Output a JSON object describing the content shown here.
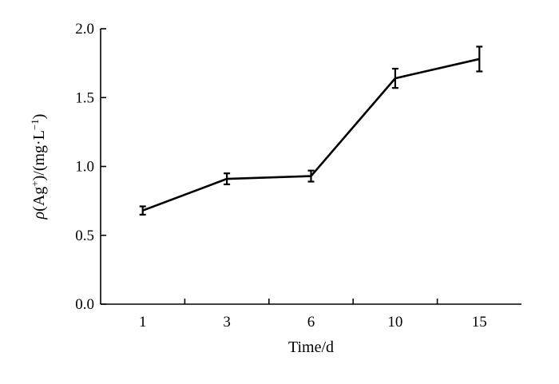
{
  "chart_data": {
    "type": "line",
    "categories": [
      "1",
      "3",
      "6",
      "10",
      "15"
    ],
    "values": [
      0.68,
      0.91,
      0.93,
      1.64,
      1.78
    ],
    "error": [
      0.03,
      0.04,
      0.04,
      0.07,
      0.09
    ],
    "xlabel": "Time/d",
    "ylabel": {
      "rho": "ρ",
      "pre": "(Ag",
      "sup1": "+",
      "mid": ")/(mg·L",
      "sup2": "−1",
      "post": ")"
    },
    "ylim": [
      0,
      2.0
    ],
    "yticks": [
      "0.0",
      "0.5",
      "1.0",
      "1.5",
      "2.0"
    ],
    "yticks_values": [
      0,
      0.5,
      1.0,
      1.5,
      2.0
    ],
    "grid": false,
    "color": "#000000"
  }
}
